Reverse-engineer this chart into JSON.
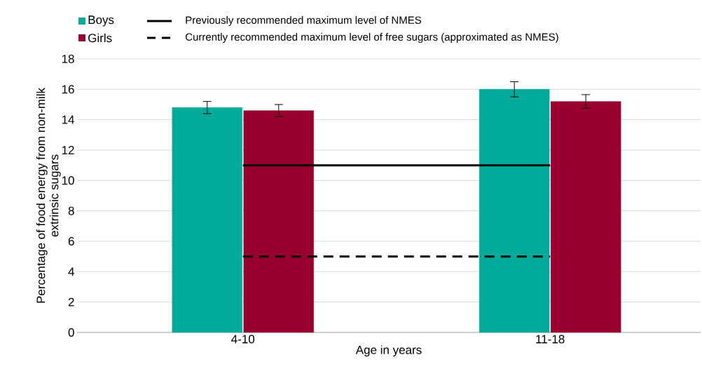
{
  "chart_data": {
    "type": "bar",
    "xlabel": "Age in years",
    "ylabel": "Percentage of food energy from non-milk extrinsic sugars",
    "categories": [
      "4-10",
      "11-18"
    ],
    "series": [
      {
        "name": "Boys",
        "color": "#00ab9b",
        "values": [
          14.8,
          16.0
        ],
        "errors": [
          0.4,
          0.5
        ]
      },
      {
        "name": "Girls",
        "color": "#990030",
        "values": [
          14.6,
          15.2
        ],
        "errors": [
          0.4,
          0.45
        ]
      }
    ],
    "ylim": [
      0,
      18
    ],
    "yticks": [
      0,
      2,
      4,
      6,
      8,
      10,
      12,
      14,
      16,
      18
    ],
    "grid": "y",
    "legend": "top left",
    "ref_lines": [
      {
        "axis": "y",
        "value": 11,
        "label": "Previously recommended maximum level of NMES",
        "color": "#000000",
        "line_style": "solid"
      },
      {
        "axis": "y",
        "value": 5,
        "label": "Currently recommended maximum level of free sugars (approximated as NMES)",
        "color": "#000000",
        "line_style": "dashed"
      }
    ]
  }
}
